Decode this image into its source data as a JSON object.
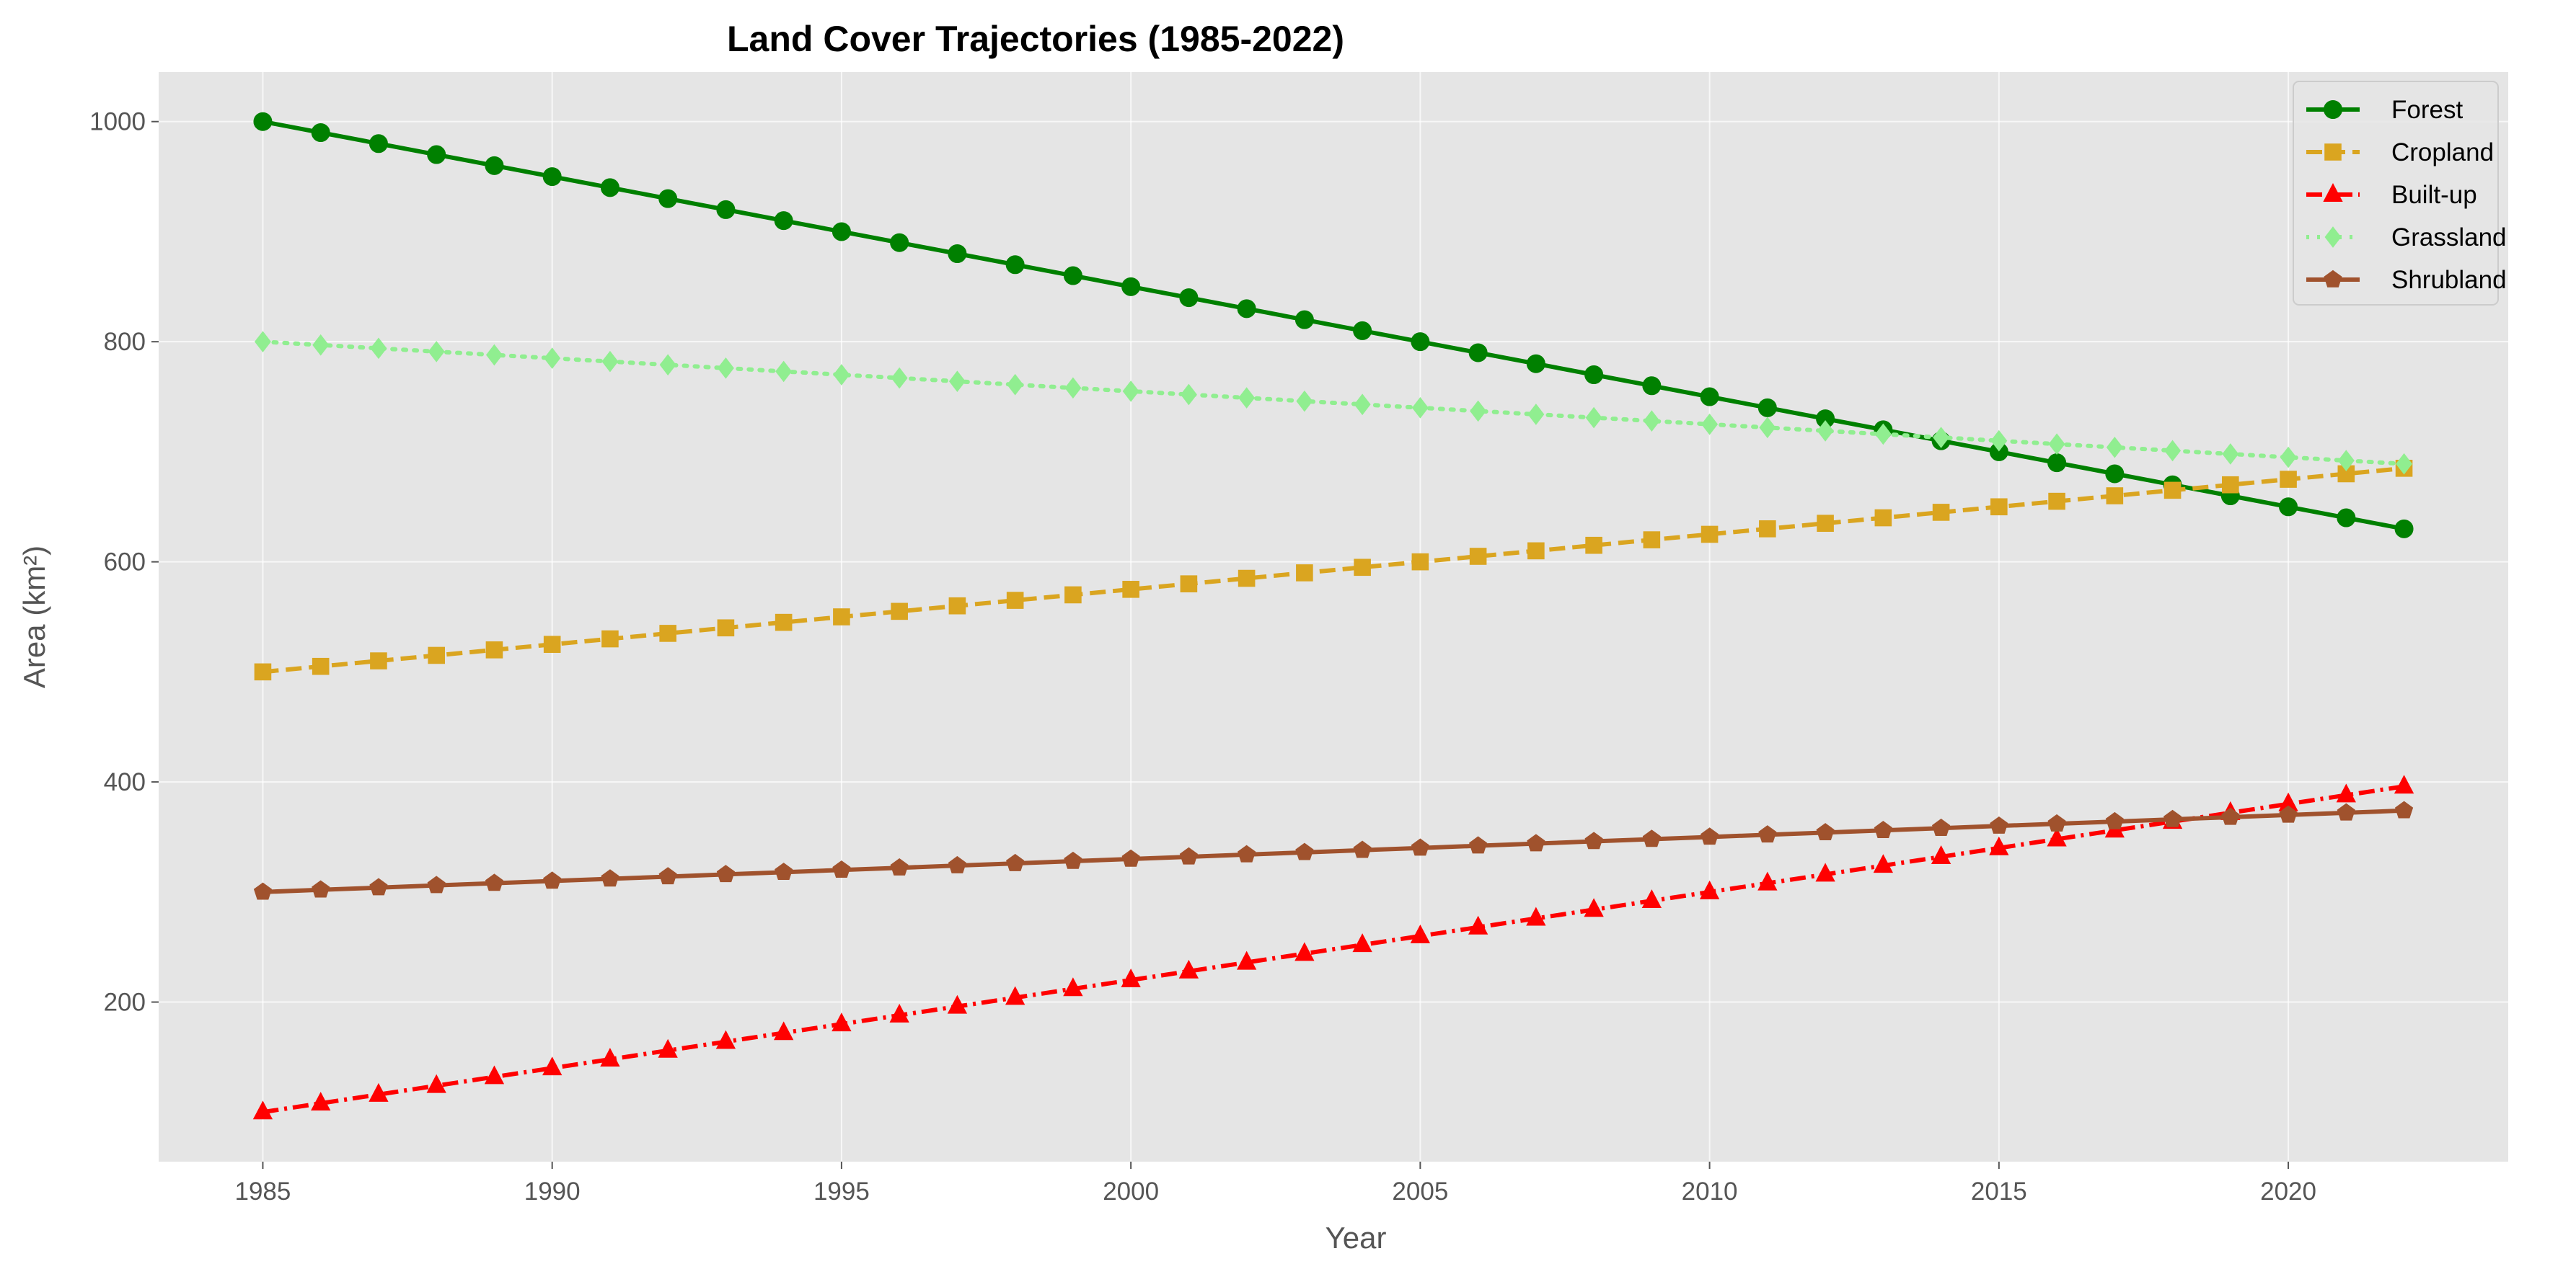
{
  "chart_data": {
    "type": "line",
    "title": "Land Cover Trajectories (1985-2022)",
    "xlabel": "Year",
    "ylabel": "Area (km²)",
    "xlim": [
      1983.2,
      2023.8
    ],
    "ylim": [
      55,
      1045
    ],
    "x_ticks": [
      1985,
      1990,
      1995,
      2000,
      2005,
      2010,
      2015,
      2020
    ],
    "y_ticks": [
      200,
      400,
      600,
      800,
      1000
    ],
    "grid": true,
    "legend_position": "top-right",
    "x": [
      1985,
      1986,
      1987,
      1988,
      1989,
      1990,
      1991,
      1992,
      1993,
      1994,
      1995,
      1996,
      1997,
      1998,
      1999,
      2000,
      2001,
      2002,
      2003,
      2004,
      2005,
      2006,
      2007,
      2008,
      2009,
      2010,
      2011,
      2012,
      2013,
      2014,
      2015,
      2016,
      2017,
      2018,
      2019,
      2020,
      2021,
      2022
    ],
    "series": [
      {
        "name": "Forest",
        "color": "#008000",
        "marker": "circle",
        "dash": "solid",
        "values": [
          1000,
          990,
          980,
          970,
          960,
          950,
          940,
          930,
          920,
          910,
          900,
          890,
          880,
          870,
          860,
          850,
          840,
          830,
          820,
          810,
          800,
          790,
          780,
          770,
          760,
          750,
          740,
          730,
          720,
          710,
          700,
          690,
          680,
          670,
          660,
          650,
          640,
          630
        ]
      },
      {
        "name": "Cropland",
        "color": "#DAA520",
        "marker": "square",
        "dash": "dashed",
        "values": [
          500,
          505,
          510,
          515,
          520,
          525,
          530,
          535,
          540,
          545,
          550,
          555,
          560,
          565,
          570,
          575,
          580,
          585,
          590,
          595,
          600,
          605,
          610,
          615,
          620,
          625,
          630,
          635,
          640,
          645,
          650,
          655,
          660,
          665,
          670,
          675,
          680,
          685
        ]
      },
      {
        "name": "Built-up",
        "color": "#FF0000",
        "marker": "triangle",
        "dash": "dashdot",
        "values": [
          100,
          108,
          116,
          124,
          132,
          140,
          148,
          156,
          164,
          172,
          180,
          188,
          196,
          204,
          212,
          220,
          228,
          236,
          244,
          252,
          260,
          268,
          276,
          284,
          292,
          300,
          308,
          316,
          324,
          332,
          340,
          348,
          356,
          364,
          372,
          380,
          388,
          396
        ]
      },
      {
        "name": "Grassland",
        "color": "#90EE90",
        "marker": "diamond",
        "dash": "dotted",
        "values": [
          800,
          797,
          794,
          791,
          788,
          785,
          782,
          779,
          776,
          773,
          770,
          767,
          764,
          761,
          758,
          755,
          752,
          749,
          746,
          743,
          740,
          737,
          734,
          731,
          728,
          725,
          722,
          719,
          716,
          713,
          710,
          707,
          704,
          701,
          698,
          695,
          692,
          689
        ]
      },
      {
        "name": "Shrubland",
        "color": "#A0522D",
        "marker": "pentagon",
        "dash": "solid",
        "values": [
          300,
          302,
          304,
          306,
          308,
          310,
          312,
          314,
          316,
          318,
          320,
          322,
          324,
          326,
          328,
          330,
          332,
          334,
          336,
          338,
          340,
          342,
          344,
          346,
          348,
          350,
          352,
          354,
          356,
          358,
          360,
          362,
          364,
          366,
          368,
          370,
          372,
          374
        ]
      }
    ]
  }
}
